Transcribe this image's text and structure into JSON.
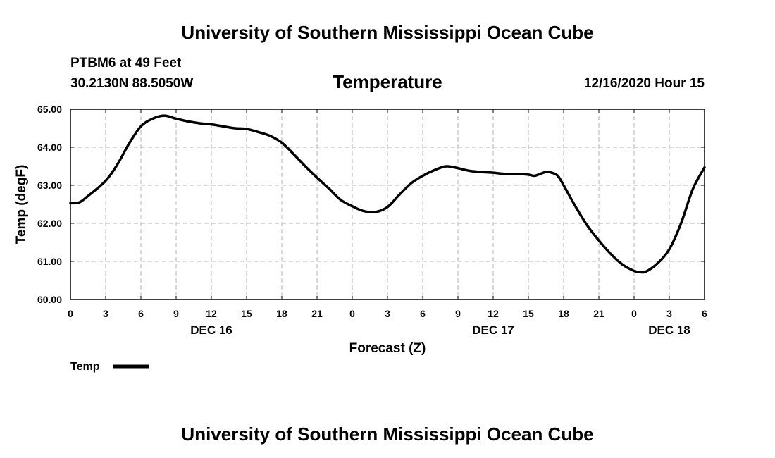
{
  "header": {
    "title": "University of Southern Mississippi Ocean Cube",
    "station": "PTBM6 at 49 Feet",
    "coords": "30.2130N 88.5050W",
    "datetime": "12/16/2020 Hour 15"
  },
  "footer": {
    "title": "University of Southern Mississippi Ocean Cube"
  },
  "legend": {
    "label": "Temp"
  },
  "colors": {
    "line": "#000000",
    "grid": "#b5b5b5",
    "background": "#ffffff"
  },
  "chart_data": {
    "type": "line",
    "title": "Temperature",
    "xlabel": "Forecast (Z)",
    "ylabel": "Temp (degF)",
    "xlim": [
      0,
      54
    ],
    "ylim": [
      60,
      65
    ],
    "x_ticks": [
      0,
      3,
      6,
      9,
      12,
      15,
      18,
      21,
      24,
      27,
      30,
      33,
      36,
      39,
      42,
      45,
      48,
      51,
      54
    ],
    "x_tick_labels": [
      "0",
      "3",
      "6",
      "9",
      "12",
      "15",
      "18",
      "21",
      "0",
      "3",
      "6",
      "9",
      "12",
      "15",
      "18",
      "21",
      "0",
      "3",
      "6"
    ],
    "y_ticks": [
      60,
      61,
      62,
      63,
      64,
      65
    ],
    "y_tick_labels": [
      "60.00",
      "61.00",
      "62.00",
      "63.00",
      "64.00",
      "65.00"
    ],
    "day_labels": [
      {
        "x": 12,
        "label": "DEC 16"
      },
      {
        "x": 36,
        "label": "DEC 17"
      },
      {
        "x": 51,
        "label": "DEC 18"
      }
    ],
    "grid": true,
    "series": [
      {
        "name": "Temp",
        "x": [
          0,
          0.75,
          1.5,
          3,
          4,
          5,
          6,
          7,
          8,
          9,
          10,
          11,
          12,
          13,
          14,
          15,
          16,
          17,
          18,
          19,
          20,
          21,
          22,
          23,
          24,
          25,
          26,
          27,
          28,
          29,
          30,
          31,
          32,
          33,
          34,
          35,
          36,
          37,
          38,
          39,
          39.5,
          40,
          40.5,
          41,
          41.5,
          42,
          43,
          44,
          45,
          46,
          47,
          48,
          48.5,
          49,
          50,
          51,
          52,
          53,
          54
        ],
        "values": [
          62.53,
          62.55,
          62.72,
          63.12,
          63.55,
          64.1,
          64.55,
          64.75,
          64.83,
          64.75,
          64.68,
          64.63,
          64.6,
          64.55,
          64.5,
          64.48,
          64.4,
          64.3,
          64.12,
          63.82,
          63.5,
          63.2,
          62.92,
          62.62,
          62.45,
          62.32,
          62.3,
          62.43,
          62.75,
          63.05,
          63.25,
          63.4,
          63.5,
          63.45,
          63.38,
          63.35,
          63.33,
          63.3,
          63.3,
          63.28,
          63.25,
          63.3,
          63.35,
          63.33,
          63.25,
          63.0,
          62.45,
          61.95,
          61.55,
          61.2,
          60.92,
          60.75,
          60.72,
          60.73,
          60.95,
          61.32,
          62.0,
          62.9,
          63.47
        ]
      }
    ]
  }
}
